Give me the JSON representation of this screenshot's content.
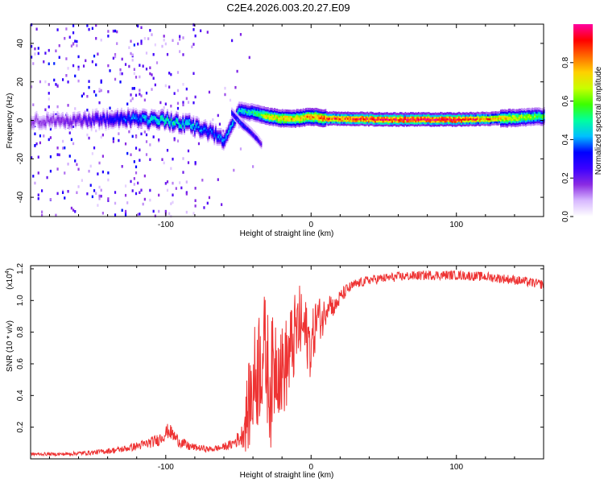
{
  "title": "C2E4.2026.003.20.27.E09",
  "colors": {
    "snr_line": "#ee3333",
    "axes": "#000000",
    "background": "#ffffff"
  },
  "chart_data": [
    {
      "type": "heatmap",
      "name": "spectrogram",
      "xlabel": "Height of straight line (km)",
      "ylabel": "Frequency (Hz)",
      "xlim": [
        -193,
        160
      ],
      "ylim": [
        -50,
        50
      ],
      "x_ticks": [
        -100,
        0,
        100
      ],
      "y_ticks": [
        -40,
        -20,
        0,
        20,
        40
      ],
      "colorbar": {
        "label": "Normalized spectral amplitude",
        "range": [
          0,
          1
        ],
        "ticks": [
          0.0,
          0.2,
          0.4,
          0.6,
          0.8
        ],
        "tick_labels": [
          "0.0",
          "0.2",
          "0.4",
          "0.6",
          "0.8"
        ],
        "colormap": [
          "#ffffff",
          "#d7b8ff",
          "#8a2be2",
          "#3b00ff",
          "#0000ff",
          "#00bfff",
          "#00ff9f",
          "#3cff00",
          "#c8ff00",
          "#ffd000",
          "#ff6a00",
          "#ff0000",
          "#ff00a0"
        ]
      },
      "dominant_frequency_track": {
        "x": [
          -190,
          -160,
          -130,
          -100,
          -85,
          -70,
          -60,
          -50,
          -40,
          -30,
          -20,
          -10,
          0,
          10,
          50,
          100,
          130,
          160
        ],
        "y": [
          0,
          0,
          1,
          0,
          -2,
          -6,
          -10,
          5,
          4,
          2,
          1,
          1,
          2,
          1,
          0.5,
          0.5,
          1,
          2
        ],
        "amplitude": [
          0.15,
          0.2,
          0.35,
          0.5,
          0.45,
          0.35,
          0.4,
          0.45,
          0.5,
          0.7,
          0.75,
          0.75,
          0.8,
          0.85,
          0.95,
          0.95,
          0.75,
          0.55
        ]
      },
      "secondary_branch": {
        "x": [
          -55,
          -48,
          -42,
          -37,
          -34
        ],
        "y": [
          4,
          -2,
          -6,
          -10,
          -13
        ],
        "amplitude": [
          0.3,
          0.35,
          0.3,
          0.3,
          0.2
        ]
      }
    },
    {
      "type": "line",
      "name": "snr",
      "xlabel": "Height of straight line (km)",
      "ylabel": "SNR (10 * v/v)",
      "y_multiplier_label": "(x10",
      "y_multiplier_exponent": "4",
      "y_multiplier_close": ")",
      "xlim": [
        -193,
        160
      ],
      "ylim": [
        0,
        1.22
      ],
      "x_ticks": [
        -100,
        0,
        100
      ],
      "y_ticks": [
        0.2,
        0.4,
        0.6,
        0.8,
        1.0,
        1.2
      ],
      "y_tick_labels": [
        "0.2",
        "0.4",
        "0.6",
        "0.8",
        "1.0",
        "1.2"
      ],
      "series": [
        {
          "name": "SNR",
          "x": [
            -193,
            -170,
            -150,
            -130,
            -115,
            -105,
            -98,
            -92,
            -85,
            -78,
            -70,
            -62,
            -55,
            -48,
            -44,
            -40,
            -36,
            -32,
            -28,
            -24,
            -20,
            -16,
            -12,
            -8,
            -4,
            0,
            4,
            8,
            12,
            16,
            20,
            25,
            30,
            40,
            50,
            60,
            80,
            100,
            120,
            140,
            160
          ],
          "y": [
            0.03,
            0.03,
            0.04,
            0.06,
            0.09,
            0.12,
            0.18,
            0.12,
            0.08,
            0.07,
            0.06,
            0.07,
            0.09,
            0.14,
            0.28,
            0.45,
            0.6,
            0.7,
            0.45,
            0.65,
            0.55,
            0.62,
            0.75,
            0.85,
            0.8,
            0.7,
            0.9,
            0.88,
            1.0,
            0.95,
            1.02,
            1.07,
            1.1,
            1.13,
            1.14,
            1.15,
            1.16,
            1.16,
            1.15,
            1.13,
            1.1
          ],
          "noise": [
            0.01,
            0.01,
            0.015,
            0.02,
            0.03,
            0.04,
            0.05,
            0.04,
            0.03,
            0.02,
            0.02,
            0.02,
            0.03,
            0.06,
            0.25,
            0.35,
            0.4,
            0.35,
            0.4,
            0.35,
            0.3,
            0.3,
            0.28,
            0.25,
            0.22,
            0.2,
            0.15,
            0.12,
            0.08,
            0.06,
            0.05,
            0.04,
            0.03,
            0.03,
            0.03,
            0.03,
            0.03,
            0.03,
            0.03,
            0.03,
            0.03
          ]
        }
      ]
    }
  ]
}
